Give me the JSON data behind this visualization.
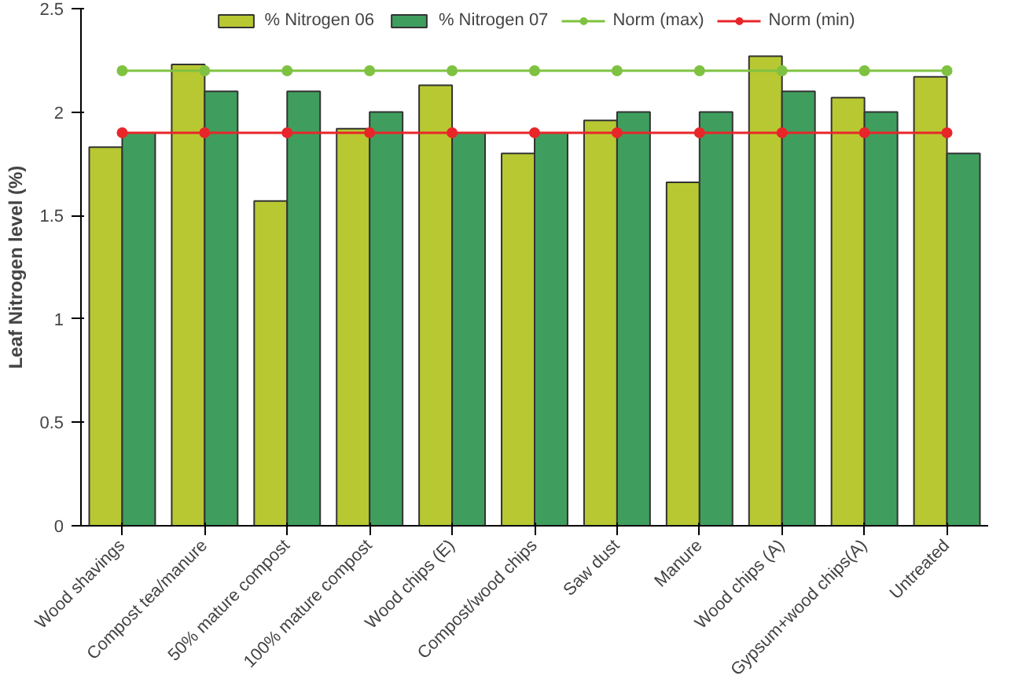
{
  "chart_data": {
    "type": "bar",
    "ylabel": "Leaf Nitrogen level (%)",
    "categories": [
      "Wood shavings",
      "Compost tea/manure",
      "50% mature compost",
      "100% mature compost",
      "Wood chips (E)",
      "Compost/wood chips",
      "Saw dust",
      "Manure",
      "Wood chips (A)",
      "Gypsum+wood chips(A)",
      "Untreated"
    ],
    "series": [
      {
        "name": "% Nitrogen 06",
        "color": "#b8c832",
        "values": [
          1.83,
          2.23,
          1.57,
          1.92,
          2.13,
          1.8,
          1.96,
          1.66,
          2.27,
          2.07,
          2.17
        ]
      },
      {
        "name": "% Nitrogen 07",
        "color": "#3f9e5e",
        "values": [
          1.9,
          2.1,
          2.1,
          2.0,
          1.9,
          1.9,
          2.0,
          2.0,
          2.1,
          2.0,
          1.8
        ]
      },
      {
        "name": "Norm (max)",
        "type": "line",
        "color": "#7fc241",
        "values": [
          2.2,
          2.2,
          2.2,
          2.2,
          2.2,
          2.2,
          2.2,
          2.2,
          2.2,
          2.2,
          2.2
        ]
      },
      {
        "name": "Norm (min)",
        "type": "line",
        "color": "#e8262a",
        "values": [
          1.9,
          1.9,
          1.9,
          1.9,
          1.9,
          1.9,
          1.9,
          1.9,
          1.9,
          1.9,
          1.9
        ]
      }
    ],
    "ylim": [
      0,
      2.5
    ],
    "yticks": [
      0,
      0.5,
      1,
      1.5,
      2,
      2.5
    ],
    "grid": false,
    "legend": "top",
    "marker": "circle"
  }
}
